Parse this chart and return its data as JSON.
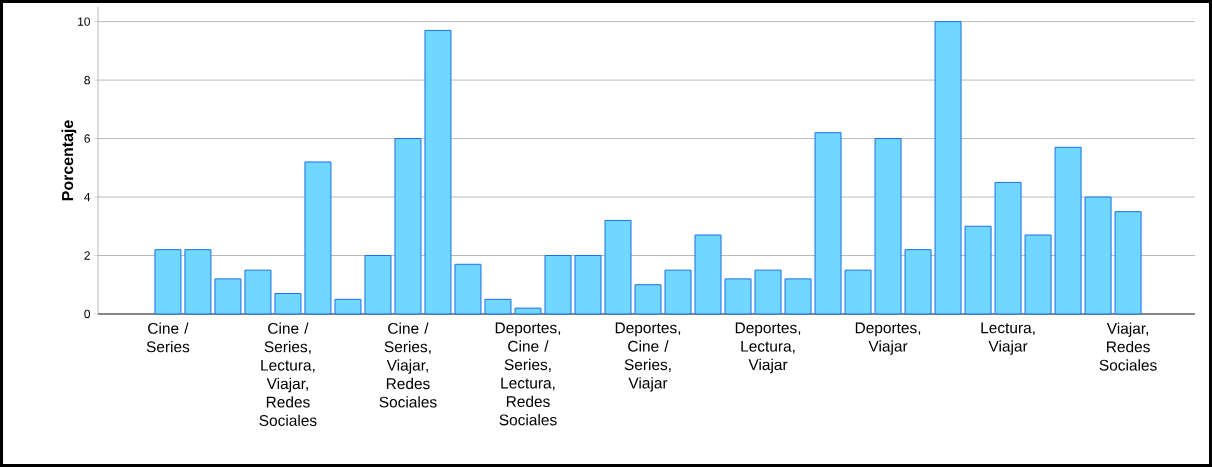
{
  "chart_data": {
    "type": "bar",
    "ylabel": "Porcentaje",
    "categories": [
      "Cine / Series",
      null,
      null,
      null,
      "Cine / Series, Lectura, Viajar, Redes Sociales",
      null,
      null,
      null,
      "Cine / Series, Viajar, Redes Sociales",
      null,
      null,
      null,
      "Deportes, Cine / Series, Lectura, Redes Sociales",
      null,
      null,
      null,
      "Deportes, Cine / Series, Viajar",
      null,
      null,
      null,
      "Deportes, Lectura, Viajar",
      null,
      null,
      null,
      "Deportes, Viajar",
      null,
      null,
      null,
      "Lectura, Viajar",
      null,
      null,
      null,
      "Viajar, Redes Sociales"
    ],
    "values": [
      2.2,
      2.2,
      1.2,
      1.5,
      0.7,
      5.2,
      0.5,
      2.0,
      6.0,
      9.7,
      1.7,
      0.5,
      0.2,
      2.0,
      2.0,
      3.2,
      1.0,
      1.5,
      2.7,
      1.2,
      1.5,
      1.2,
      6.2,
      1.5,
      6.0,
      2.2,
      10.0,
      3.0,
      4.5,
      2.7,
      5.7,
      4.0,
      3.5
    ],
    "color": "#70d8ff",
    "ylim": [
      0,
      10.5
    ],
    "yticks": [
      0,
      2,
      4,
      6,
      8,
      10
    ],
    "grid": "y"
  }
}
